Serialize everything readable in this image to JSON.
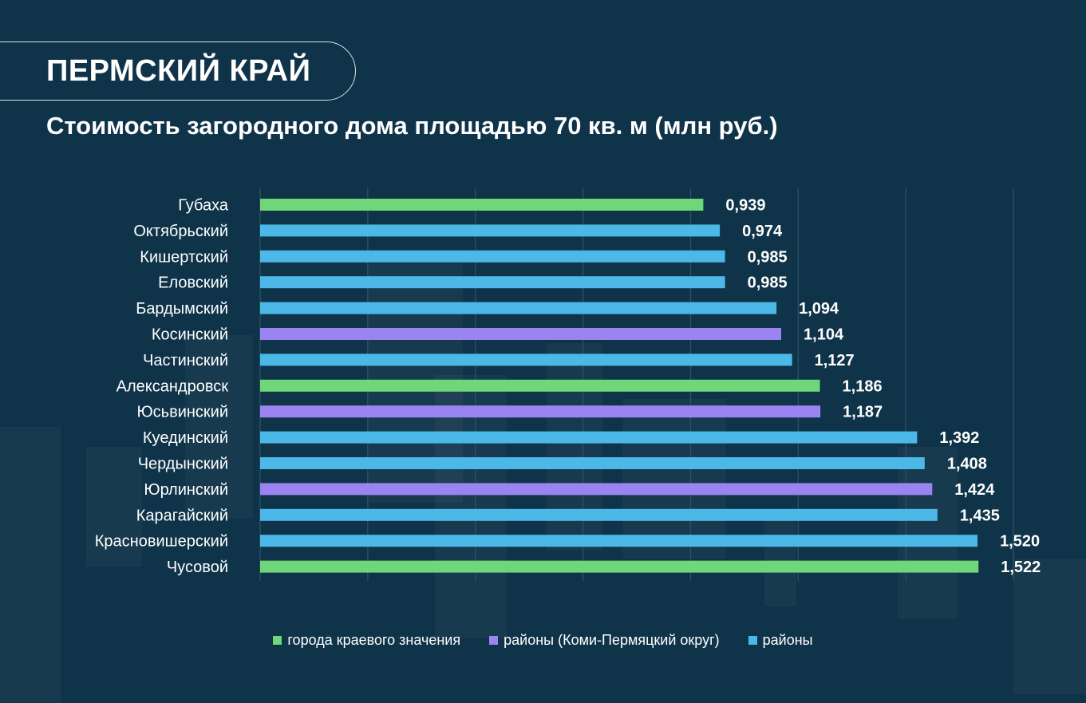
{
  "header": {
    "region": "ПЕРМСКИЙ КРАЙ",
    "subtitle": "Стоимость загородного дома площадью 70 кв. м (млн руб.)"
  },
  "colors": {
    "background": "#0f3349",
    "cities": "#6fd67a",
    "komi": "#9a84f2",
    "districts": "#4cb8e8",
    "grid": "#2e5168"
  },
  "chart_data": {
    "type": "bar",
    "orientation": "horizontal",
    "title": "Стоимость загородного дома площадью 70 кв. м (млн руб.)",
    "xlim": [
      0,
      1.6
    ],
    "grid": true,
    "legend_position": "bottom",
    "categories": [
      "Губаха",
      "Октябрьский",
      "Кишертский",
      "Еловский",
      "Бардымский",
      "Косинский",
      "Частинский",
      "Александровск",
      "Юсьвинский",
      "Куединский",
      "Чердынский",
      "Юрлинский",
      "Карагайский",
      "Красновишерский",
      "Чусовой"
    ],
    "values": [
      0.939,
      0.974,
      0.985,
      0.985,
      1.094,
      1.104,
      1.127,
      1.186,
      1.187,
      1.392,
      1.408,
      1.424,
      1.435,
      1.52,
      1.522
    ],
    "value_labels": [
      "0,939",
      "0,974",
      "0,985",
      "0,985",
      "1,094",
      "1,104",
      "1,127",
      "1,186",
      "1,187",
      "1,392",
      "1,408",
      "1,424",
      "1,435",
      "1,520",
      "1,522"
    ],
    "groups": [
      "cities",
      "districts",
      "districts",
      "districts",
      "districts",
      "komi",
      "districts",
      "cities",
      "komi",
      "districts",
      "districts",
      "komi",
      "districts",
      "districts",
      "cities"
    ],
    "legend": [
      {
        "key": "cities",
        "label": "города краевого значения"
      },
      {
        "key": "komi",
        "label": "районы (Коми-Пермяцкий округ)"
      },
      {
        "key": "districts",
        "label": "районы"
      }
    ]
  }
}
